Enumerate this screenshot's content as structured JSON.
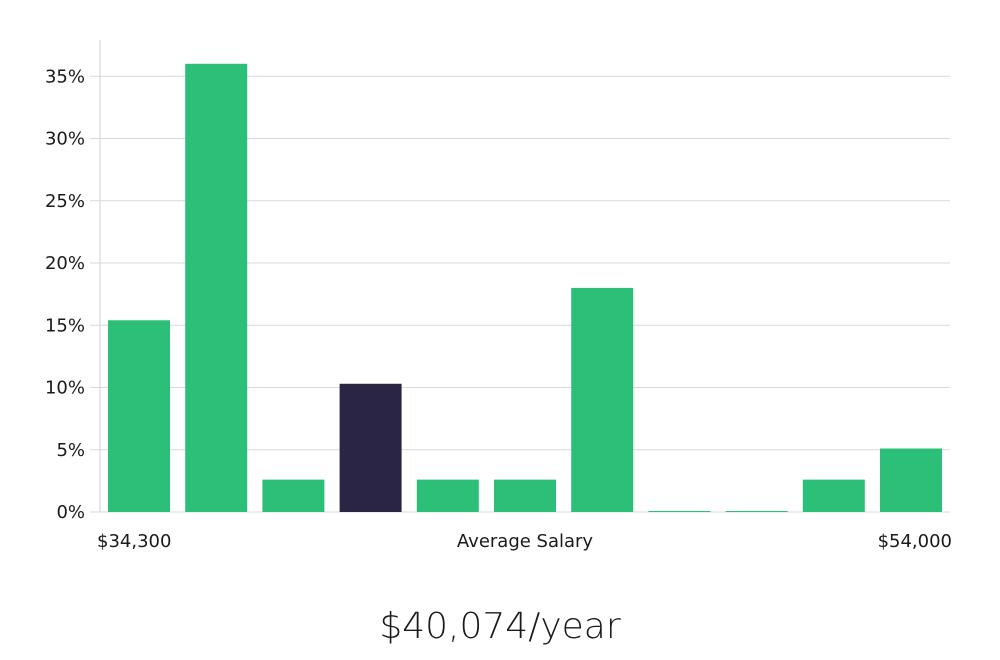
{
  "chart_data": {
    "type": "bar",
    "categories": [
      "1",
      "2",
      "3",
      "4",
      "5",
      "6",
      "7",
      "8",
      "9",
      "10",
      "11"
    ],
    "values": [
      15.4,
      36.0,
      2.6,
      10.3,
      2.6,
      2.6,
      18.0,
      0,
      0,
      2.6,
      5.1
    ],
    "highlight_index": 3,
    "ylim": [
      0,
      37.5
    ],
    "yticks": [
      0,
      5,
      10,
      15,
      20,
      25,
      30,
      35
    ],
    "ytick_labels": [
      "0%",
      "5%",
      "10%",
      "15%",
      "20%",
      "25%",
      "30%",
      "35%"
    ],
    "x_min_label": "$34,300",
    "xlabel": "Average Salary",
    "x_max_label": "$54,000",
    "grid": true,
    "colors": {
      "bar": "#2bbf78",
      "highlight": "#2a2545",
      "grid": "#d9d9d9",
      "axis": "#d0d0d0"
    }
  },
  "salary_text": "$40,074/year"
}
